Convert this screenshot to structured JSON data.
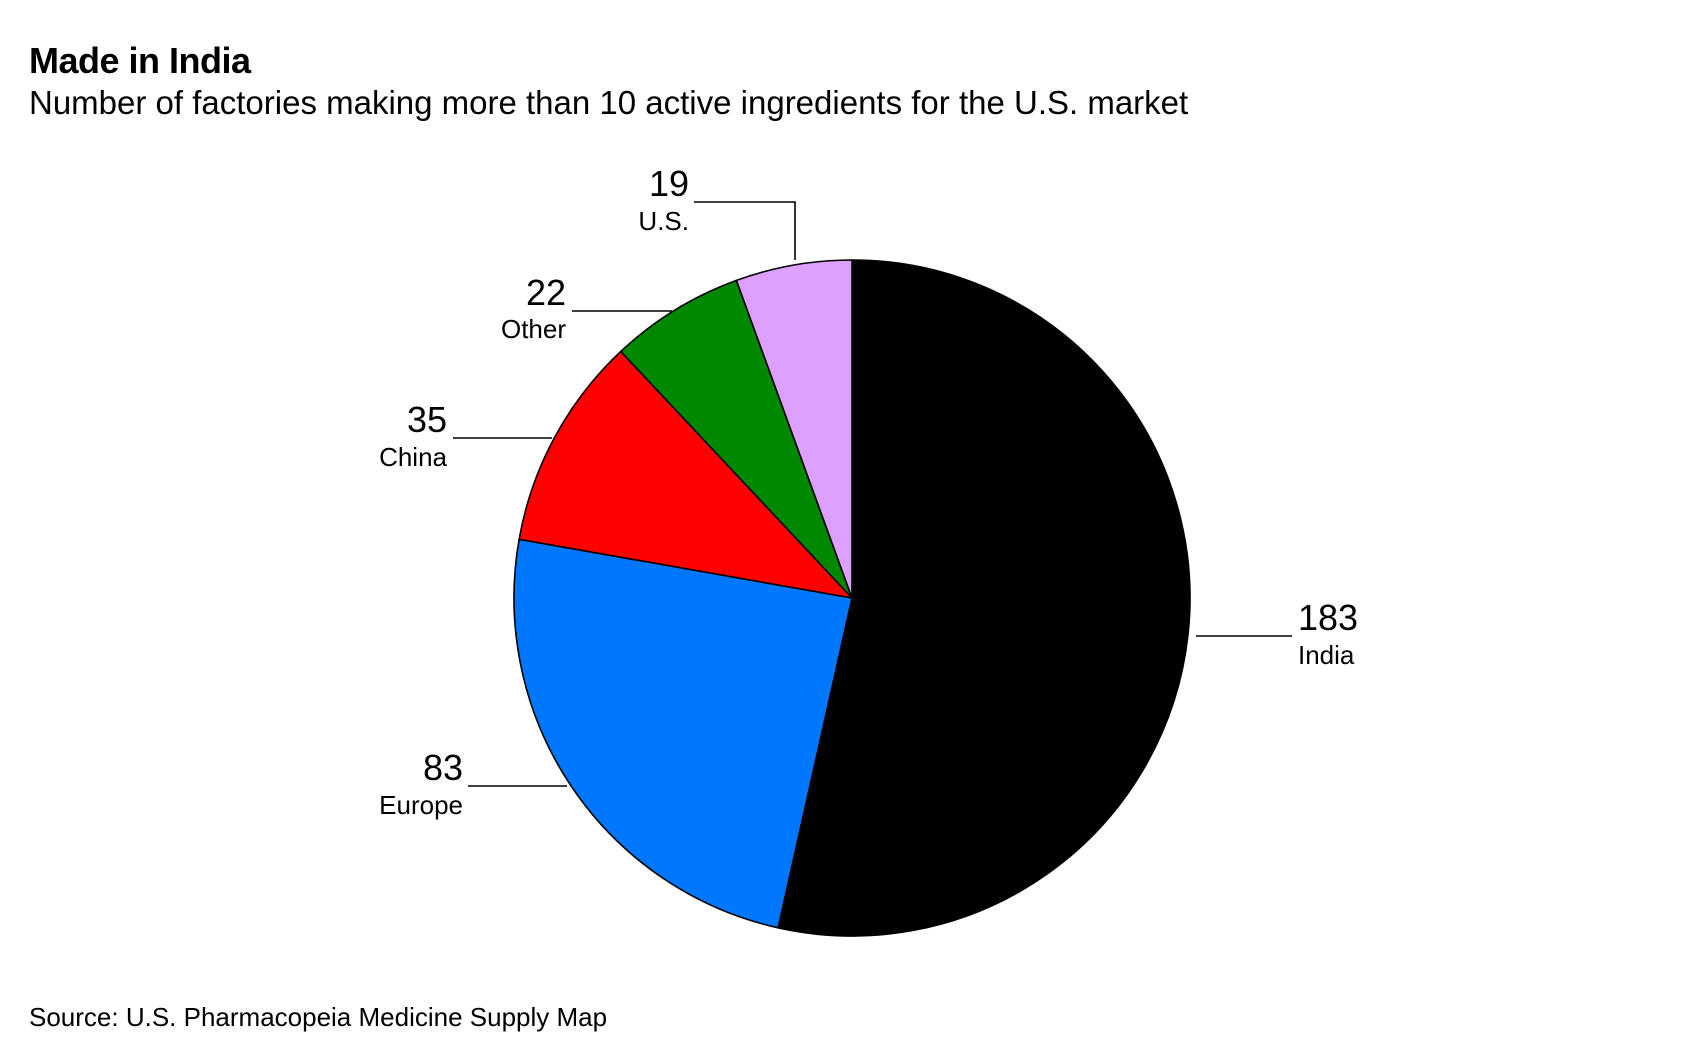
{
  "title": "Made in India",
  "subtitle": "Number of factories making more than 10 active ingredients for the U.S. market",
  "source": "Source: U.S. Pharmacopeia Medicine Supply Map",
  "chart_data": {
    "type": "pie",
    "title": "Made in India",
    "subtitle": "Number of factories making more than 10 active ingredients for the U.S. market",
    "start": "12 o'clock",
    "direction": "clockwise",
    "slices": [
      {
        "label": "India",
        "value": 183,
        "value_label": "183",
        "color": "#000000"
      },
      {
        "label": "Europe",
        "value": 83,
        "value_label": "83",
        "color": "#0077FF"
      },
      {
        "label": "China",
        "value": 35,
        "value_label": "35",
        "color": "#FF0000"
      },
      {
        "label": "Other",
        "value": 22,
        "value_label": "22",
        "color": "#008800"
      },
      {
        "label": "U.S.",
        "value": 19,
        "value_label": "19",
        "color": "#DDA0FF"
      }
    ],
    "source": "Source: U.S. Pharmacopeia Medicine Supply Map"
  }
}
